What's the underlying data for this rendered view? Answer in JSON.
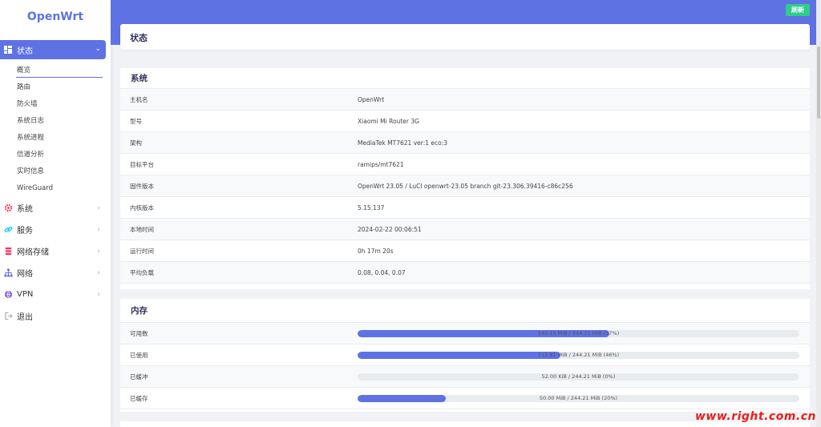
{
  "brand": "OpenWrt",
  "header": {
    "refresh_label": "刷新"
  },
  "sidebar": {
    "active_menu": {
      "label": "状态",
      "icon": "dashboard-icon"
    },
    "status_submenu": [
      "概览",
      "路由",
      "防火墙",
      "系统日志",
      "系统进程",
      "信道分析",
      "实时信息",
      "WireGuard"
    ],
    "items": [
      {
        "label": "系统",
        "icon": "gear-icon",
        "color": "#f5365c"
      },
      {
        "label": "服务",
        "icon": "link-icon",
        "color": "#11cdef"
      },
      {
        "label": "网络存储",
        "icon": "storage-icon",
        "color": "#f5365c"
      },
      {
        "label": "网络",
        "icon": "network-icon",
        "color": "#5e72e4"
      },
      {
        "label": "VPN",
        "icon": "vpn-icon",
        "color": "#8965e0"
      },
      {
        "label": "退出",
        "icon": "logout-icon",
        "color": "#aaaaaa"
      }
    ]
  },
  "page": {
    "title": "状态"
  },
  "system": {
    "title": "系统",
    "rows": [
      {
        "key": "主机名",
        "value": "OpenWrt"
      },
      {
        "key": "型号",
        "value": "Xiaomi Mi Router 3G"
      },
      {
        "key": "架构",
        "value": "MediaTek MT7621 ver:1 eco:3"
      },
      {
        "key": "目标平台",
        "value": "ramips/mt7621"
      },
      {
        "key": "固件版本",
        "value": "OpenWrt 23.05 / LuCI openwrt-23.05 branch git-23.306.39416-c86c256"
      },
      {
        "key": "内核版本",
        "value": "5.15.137"
      },
      {
        "key": "本地时间",
        "value": "2024-02-22 00:06:51"
      },
      {
        "key": "运行时间",
        "value": "0h 17m 20s"
      },
      {
        "key": "平均负载",
        "value": "0.08, 0.04, 0.07"
      }
    ]
  },
  "memory": {
    "title": "内存",
    "rows": [
      {
        "key": "可用数",
        "text": "140.15 MiB / 244.21 MiB (57%)",
        "percent": 57
      },
      {
        "key": "已使用",
        "text": "112.81 MiB / 244.21 MiB (46%)",
        "percent": 46
      },
      {
        "key": "已缓冲",
        "text": "52.00 KiB / 244.21 MiB (0%)",
        "percent": 0
      },
      {
        "key": "已缓存",
        "text": "50.00 MiB / 244.21 MiB (20%)",
        "percent": 20
      }
    ]
  },
  "colors": {
    "accent": "#5e72e4",
    "success": "#2dce89"
  },
  "watermark": "www.right.com.cn"
}
